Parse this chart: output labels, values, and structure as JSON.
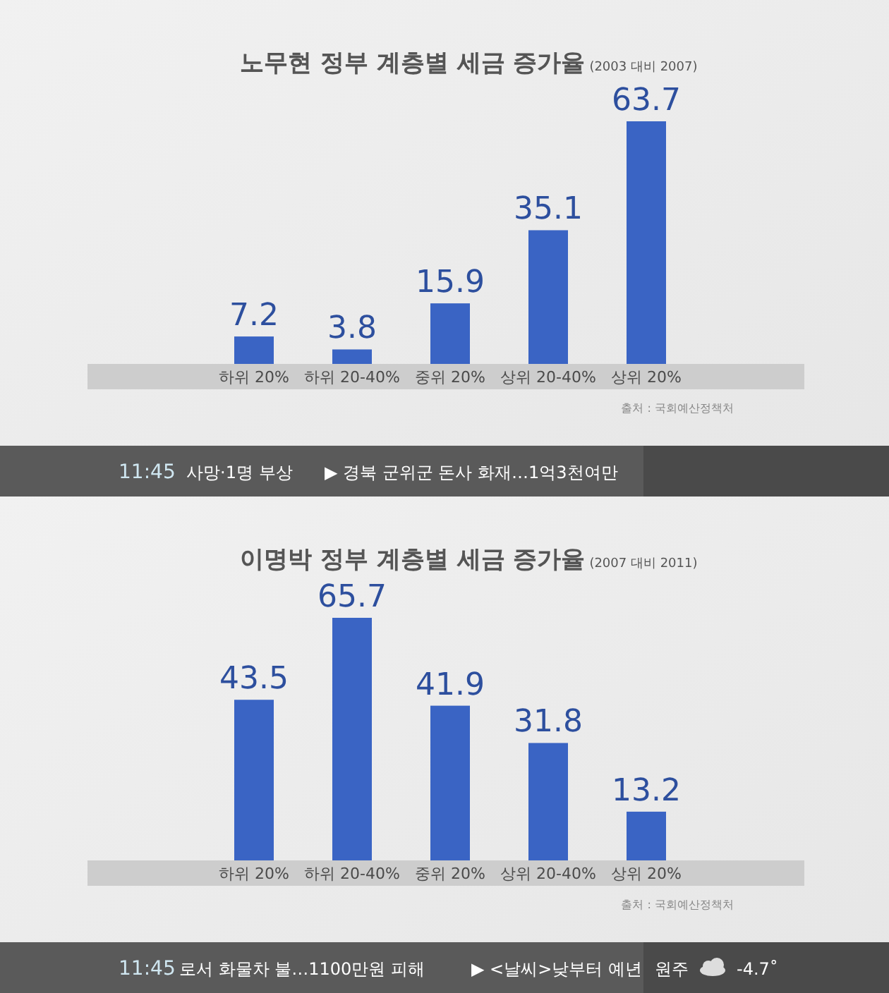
{
  "chart_data": [
    {
      "type": "bar",
      "title": "노무현 정부 계층별 세금 증가율",
      "subtitle": "(2003 대비 2007)",
      "categories": [
        "하위 20%",
        "하위 20-40%",
        "중위 20%",
        "상위 20-40%",
        "상위 20%"
      ],
      "values": [
        7.2,
        3.8,
        15.9,
        35.1,
        63.7
      ],
      "color": "#3a64c4",
      "data_labels": true,
      "annotations": [
        "출처 : 국회예산정책처",
        "11:45",
        "사망·1명 부상",
        "▶ 경북 군위군 돈사 화재…1억3천여만"
      ]
    },
    {
      "type": "bar",
      "title": "이명박 정부 계층별 세금 증가율",
      "subtitle": "(2007 대비 2011)",
      "categories": [
        "하위 20%",
        "하위 20-40%",
        "중위 20%",
        "상위 20-40%",
        "상위 20%"
      ],
      "values": [
        43.5,
        65.7,
        41.9,
        31.8,
        13.2
      ],
      "color": "#3a64c4",
      "data_labels": true,
      "annotations": [
        "출처 : 국회예산정책처",
        "11:45",
        "로서 화물차 불…1100만원 피해",
        "▶ <날씨>낮부터 예년",
        "원주",
        "-4.7˚"
      ]
    }
  ]
}
